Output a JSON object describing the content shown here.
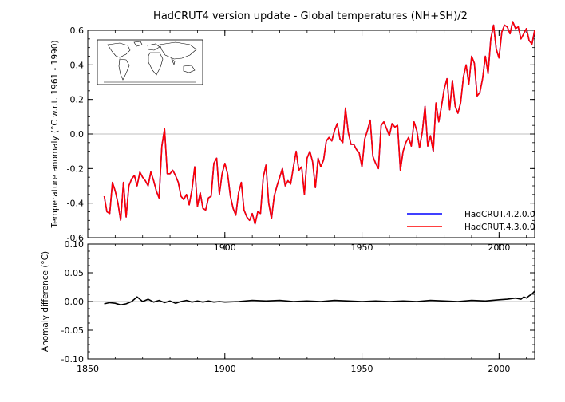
{
  "chart_data": [
    {
      "type": "line",
      "title": "HadCRUT4 version update - Global temperatures (NH+SH)/2",
      "xlabel": "",
      "ylabel": "Temperature anomaly (°C w.r.t. 1961 - 1990)",
      "xlim": [
        1850,
        2013
      ],
      "ylim": [
        -0.6,
        0.6
      ],
      "x_ticks": [
        "1900",
        "1950",
        "2000"
      ],
      "y_ticks": [
        "-0.6",
        "-0.4",
        "-0.2",
        "0.0",
        "0.2",
        "0.4",
        "0.6"
      ],
      "zero_line": true,
      "inset": "world-map",
      "legend_position": "bottom-right",
      "x": [
        1856,
        1857,
        1858,
        1859,
        1860,
        1861,
        1862,
        1863,
        1864,
        1865,
        1866,
        1867,
        1868,
        1869,
        1870,
        1871,
        1872,
        1873,
        1874,
        1875,
        1876,
        1877,
        1878,
        1879,
        1880,
        1881,
        1882,
        1883,
        1884,
        1885,
        1886,
        1887,
        1888,
        1889,
        1890,
        1891,
        1892,
        1893,
        1894,
        1895,
        1896,
        1897,
        1898,
        1899,
        1900,
        1901,
        1902,
        1903,
        1904,
        1905,
        1906,
        1907,
        1908,
        1909,
        1910,
        1911,
        1912,
        1913,
        1914,
        1915,
        1916,
        1917,
        1918,
        1919,
        1920,
        1921,
        1922,
        1923,
        1924,
        1925,
        1926,
        1927,
        1928,
        1929,
        1930,
        1931,
        1932,
        1933,
        1934,
        1935,
        1936,
        1937,
        1938,
        1939,
        1940,
        1941,
        1942,
        1943,
        1944,
        1945,
        1946,
        1947,
        1948,
        1949,
        1950,
        1951,
        1952,
        1953,
        1954,
        1955,
        1956,
        1957,
        1958,
        1959,
        1960,
        1961,
        1962,
        1963,
        1964,
        1965,
        1966,
        1967,
        1968,
        1969,
        1970,
        1971,
        1972,
        1973,
        1974,
        1975,
        1976,
        1977,
        1978,
        1979,
        1980,
        1981,
        1982,
        1983,
        1984,
        1985,
        1986,
        1987,
        1988,
        1989,
        1990,
        1991,
        1992,
        1993,
        1994,
        1995,
        1996,
        1997,
        1998,
        1999,
        2000,
        2001,
        2002,
        2003,
        2004,
        2005,
        2006,
        2007,
        2008,
        2009,
        2010,
        2011,
        2012,
        2013
      ],
      "series": [
        {
          "name": "HadCRUT.4.2.0.0",
          "color": "#0000ff",
          "values": [
            -0.36,
            -0.45,
            -0.46,
            -0.28,
            -0.33,
            -0.4,
            -0.5,
            -0.28,
            -0.48,
            -0.3,
            -0.26,
            -0.24,
            -0.3,
            -0.22,
            -0.25,
            -0.27,
            -0.3,
            -0.22,
            -0.27,
            -0.33,
            -0.37,
            -0.07,
            0.03,
            -0.23,
            -0.23,
            -0.21,
            -0.24,
            -0.28,
            -0.36,
            -0.38,
            -0.35,
            -0.41,
            -0.32,
            -0.19,
            -0.42,
            -0.34,
            -0.43,
            -0.44,
            -0.37,
            -0.36,
            -0.17,
            -0.14,
            -0.35,
            -0.23,
            -0.17,
            -0.23,
            -0.36,
            -0.43,
            -0.47,
            -0.34,
            -0.28,
            -0.44,
            -0.48,
            -0.5,
            -0.46,
            -0.52,
            -0.45,
            -0.46,
            -0.25,
            -0.18,
            -0.4,
            -0.49,
            -0.36,
            -0.3,
            -0.25,
            -0.2,
            -0.3,
            -0.27,
            -0.29,
            -0.19,
            -0.1,
            -0.21,
            -0.19,
            -0.35,
            -0.14,
            -0.1,
            -0.16,
            -0.31,
            -0.14,
            -0.19,
            -0.15,
            -0.04,
            -0.02,
            -0.04,
            0.02,
            0.06,
            -0.03,
            -0.05,
            0.15,
            0.01,
            -0.06,
            -0.06,
            -0.09,
            -0.11,
            -0.19,
            -0.03,
            0.02,
            0.08,
            -0.13,
            -0.17,
            -0.2,
            0.05,
            0.07,
            0.03,
            -0.01,
            0.06,
            0.04,
            0.05,
            -0.21,
            -0.1,
            -0.05,
            -0.02,
            -0.07,
            0.07,
            0.02,
            -0.08,
            0.01,
            0.16,
            -0.07,
            -0.01,
            -0.1,
            0.18,
            0.07,
            0.16,
            0.26,
            0.32,
            0.14,
            0.31,
            0.16,
            0.12,
            0.18,
            0.33,
            0.4,
            0.29,
            0.45,
            0.41,
            0.22,
            0.24,
            0.32,
            0.45,
            0.35,
            0.55,
            0.63,
            0.49,
            0.44,
            0.59,
            0.63,
            0.62,
            0.58,
            0.65,
            0.61,
            0.62,
            0.55,
            0.58,
            0.61,
            0.54,
            0.52,
            0.6
          ]
        },
        {
          "name": "HadCRUT.4.3.0.0",
          "color": "#ff0000",
          "values": [
            -0.36,
            -0.45,
            -0.46,
            -0.28,
            -0.33,
            -0.4,
            -0.5,
            -0.28,
            -0.48,
            -0.3,
            -0.26,
            -0.24,
            -0.3,
            -0.22,
            -0.25,
            -0.27,
            -0.3,
            -0.22,
            -0.27,
            -0.33,
            -0.37,
            -0.07,
            0.03,
            -0.23,
            -0.23,
            -0.21,
            -0.24,
            -0.28,
            -0.36,
            -0.38,
            -0.35,
            -0.41,
            -0.32,
            -0.19,
            -0.42,
            -0.34,
            -0.43,
            -0.44,
            -0.37,
            -0.36,
            -0.17,
            -0.14,
            -0.35,
            -0.23,
            -0.17,
            -0.23,
            -0.36,
            -0.43,
            -0.47,
            -0.34,
            -0.28,
            -0.44,
            -0.48,
            -0.5,
            -0.46,
            -0.52,
            -0.45,
            -0.46,
            -0.25,
            -0.18,
            -0.4,
            -0.49,
            -0.36,
            -0.3,
            -0.25,
            -0.2,
            -0.3,
            -0.27,
            -0.29,
            -0.19,
            -0.1,
            -0.21,
            -0.19,
            -0.35,
            -0.14,
            -0.1,
            -0.16,
            -0.31,
            -0.14,
            -0.19,
            -0.15,
            -0.04,
            -0.02,
            -0.04,
            0.02,
            0.06,
            -0.03,
            -0.05,
            0.15,
            0.01,
            -0.06,
            -0.06,
            -0.09,
            -0.11,
            -0.19,
            -0.03,
            0.02,
            0.08,
            -0.13,
            -0.17,
            -0.2,
            0.05,
            0.07,
            0.03,
            -0.01,
            0.06,
            0.04,
            0.05,
            -0.21,
            -0.1,
            -0.05,
            -0.02,
            -0.07,
            0.07,
            0.02,
            -0.08,
            0.01,
            0.16,
            -0.07,
            -0.01,
            -0.1,
            0.18,
            0.07,
            0.16,
            0.26,
            0.32,
            0.14,
            0.31,
            0.16,
            0.12,
            0.18,
            0.33,
            0.4,
            0.29,
            0.45,
            0.41,
            0.22,
            0.24,
            0.32,
            0.45,
            0.35,
            0.55,
            0.63,
            0.49,
            0.44,
            0.59,
            0.63,
            0.62,
            0.58,
            0.65,
            0.61,
            0.62,
            0.55,
            0.58,
            0.61,
            0.54,
            0.52,
            0.6
          ]
        }
      ]
    },
    {
      "type": "line",
      "title": "",
      "xlabel": "",
      "ylabel": "Anomaly difference (°C)",
      "xlim": [
        1850,
        2013
      ],
      "ylim": [
        -0.1,
        0.1
      ],
      "x_ticks": [
        "1850",
        "1900",
        "1950",
        "2000"
      ],
      "y_ticks": [
        "-0.10",
        "-0.05",
        "0.00",
        "0.05",
        "0.10"
      ],
      "zero_line": true,
      "series": [
        {
          "color": "#000000",
          "x": [
            1856,
            1858,
            1860,
            1862,
            1864,
            1866,
            1868,
            1870,
            1872,
            1874,
            1876,
            1878,
            1880,
            1882,
            1884,
            1886,
            1888,
            1890,
            1892,
            1894,
            1896,
            1898,
            1900,
            1905,
            1910,
            1915,
            1920,
            1925,
            1930,
            1935,
            1940,
            1945,
            1950,
            1955,
            1960,
            1965,
            1970,
            1975,
            1980,
            1985,
            1990,
            1995,
            2000,
            2003,
            2006,
            2008,
            2009,
            2010,
            2011,
            2012,
            2013
          ],
          "values": [
            -0.004,
            -0.002,
            -0.003,
            -0.006,
            -0.004,
            0.0,
            0.008,
            0.0,
            0.004,
            -0.001,
            0.002,
            -0.002,
            0.001,
            -0.003,
            0.0,
            0.002,
            -0.001,
            0.001,
            -0.001,
            0.001,
            -0.001,
            0.0,
            -0.001,
            0.0,
            0.002,
            0.001,
            0.002,
            0.0,
            0.001,
            0.0,
            0.002,
            0.001,
            0.0,
            0.001,
            0.0,
            0.001,
            0.0,
            0.002,
            0.001,
            0.0,
            0.002,
            0.001,
            0.003,
            0.004,
            0.006,
            0.004,
            0.008,
            0.006,
            0.01,
            0.013,
            0.018
          ]
        }
      ]
    }
  ]
}
